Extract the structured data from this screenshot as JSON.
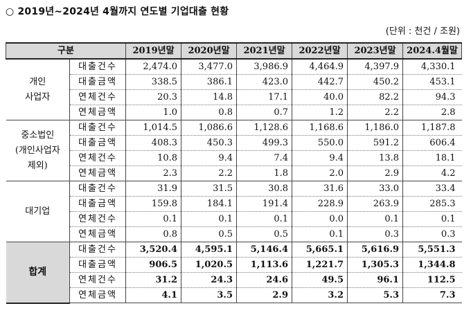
{
  "title": "○ 2019년~2024년 4월까지 연도별 기업대출 현황",
  "unit": "(단위 : 천건 / 조원)",
  "header": {
    "category": "구분",
    "years": [
      "2019년말",
      "2020년말",
      "2021년말",
      "2022년말",
      "2023년말",
      "2024.4월말"
    ]
  },
  "groups": [
    {
      "name_lines": [
        "개인",
        "사업자"
      ],
      "rows": [
        {
          "label": "대출건수",
          "values": [
            "2,474.0",
            "3,477.0",
            "3,986.9",
            "4,464.9",
            "4,397.9",
            "4,330.1"
          ]
        },
        {
          "label": "대출금액",
          "values": [
            "338.5",
            "386.1",
            "423.0",
            "442.7",
            "450.2",
            "453.1"
          ]
        },
        {
          "label": "연체건수",
          "values": [
            "20.3",
            "14.8",
            "17.1",
            "40.0",
            "82.2",
            "94.3"
          ]
        },
        {
          "label": "연체금액",
          "values": [
            "1.0",
            "0.8",
            "0.7",
            "1.2",
            "2.2",
            "2.8"
          ]
        }
      ]
    },
    {
      "name_lines": [
        "중소법인",
        "(개인사업자",
        "제외)"
      ],
      "rows": [
        {
          "label": "대출건수",
          "values": [
            "1,014.5",
            "1,086.6",
            "1,128.6",
            "1,168.6",
            "1,186.0",
            "1,187.8"
          ]
        },
        {
          "label": "대출금액",
          "values": [
            "408.3",
            "450.3",
            "499.3",
            "550.0",
            "591.2",
            "606.4"
          ]
        },
        {
          "label": "연체건수",
          "values": [
            "10.8",
            "9.4",
            "7.4",
            "9.4",
            "13.8",
            "18.1"
          ]
        },
        {
          "label": "연체금액",
          "values": [
            "2.3",
            "2.2",
            "1.8",
            "2.0",
            "2.9",
            "4.2"
          ]
        }
      ]
    },
    {
      "name_lines": [
        "대기업"
      ],
      "rows": [
        {
          "label": "대출건수",
          "values": [
            "31.9",
            "31.5",
            "30.8",
            "31.6",
            "33.0",
            "33.4"
          ]
        },
        {
          "label": "대출금액",
          "values": [
            "159.8",
            "184.1",
            "191.4",
            "228.9",
            "263.9",
            "285.3"
          ]
        },
        {
          "label": "연체건수",
          "values": [
            "0.1",
            "0.1",
            "0.1",
            "0.0",
            "0.1",
            "0.1"
          ]
        },
        {
          "label": "연체금액",
          "values": [
            "0.8",
            "0.5",
            "0.5",
            "0.1",
            "0.3",
            "0.3"
          ]
        }
      ]
    },
    {
      "name_lines": [
        "합계"
      ],
      "is_total": true,
      "rows": [
        {
          "label": "대출건수",
          "values": [
            "3,520.4",
            "4,595.1",
            "5,146.4",
            "5,665.1",
            "5,616.9",
            "5,551.3"
          ]
        },
        {
          "label": "대출금액",
          "values": [
            "906.5",
            "1,020.5",
            "1,113.6",
            "1,221.7",
            "1,305.3",
            "1,344.8"
          ]
        },
        {
          "label": "연체건수",
          "values": [
            "31.2",
            "24.3",
            "24.6",
            "49.5",
            "96.1",
            "112.5"
          ]
        },
        {
          "label": "연체금액",
          "values": [
            "4.1",
            "3.5",
            "2.9",
            "3.2",
            "5.3",
            "7.3"
          ]
        }
      ]
    }
  ]
}
